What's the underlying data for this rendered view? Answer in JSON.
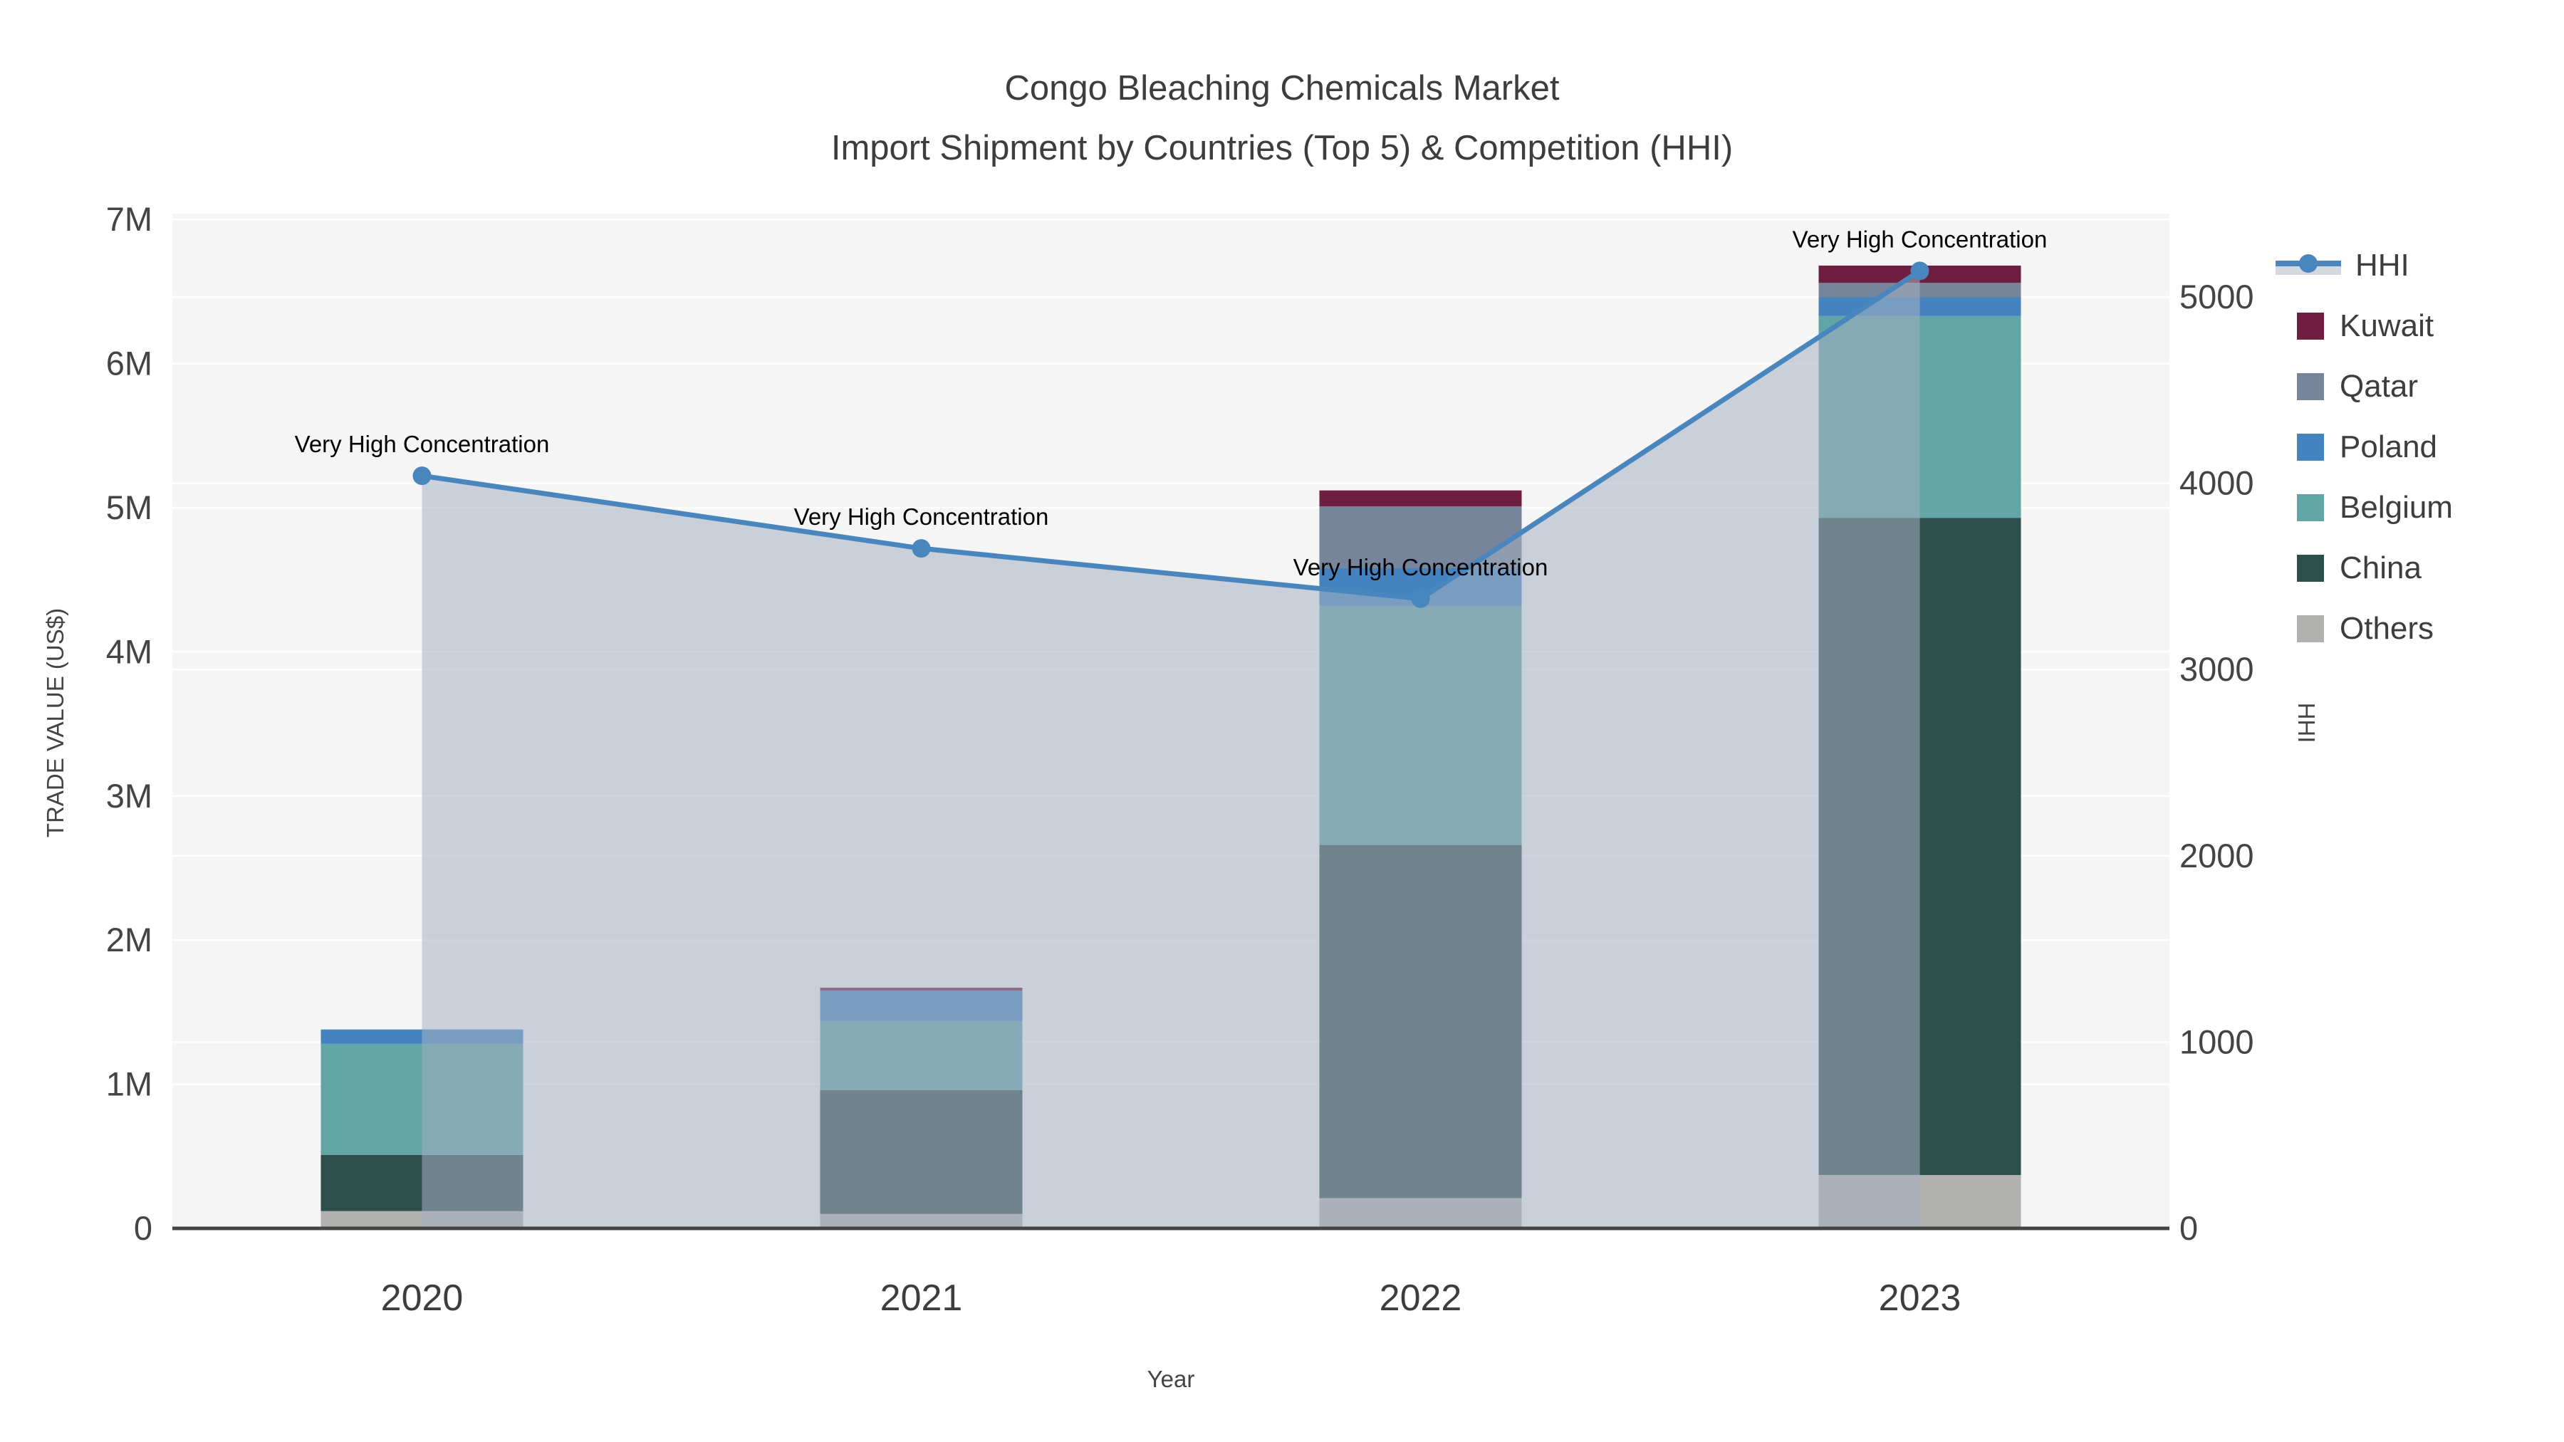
{
  "title": {
    "line1": "Congo Bleaching Chemicals Market",
    "line2": "Import Shipment by Countries (Top 5) & Competition (HHI)"
  },
  "chart_data": {
    "type": "bar",
    "subtype": "stacked-bars-with-dual-axis-line",
    "categories": [
      "2020",
      "2021",
      "2022",
      "2023"
    ],
    "bar_unit": "US$ millions (read from left axis, estimated)",
    "bar_series": [
      {
        "name": "Others",
        "color": "#b1b1af",
        "values_musd": [
          0.12,
          0.1,
          0.21,
          0.37
        ]
      },
      {
        "name": "China",
        "color": "#2d4f4c",
        "values_musd": [
          0.39,
          0.86,
          2.45,
          4.56
        ]
      },
      {
        "name": "Belgium",
        "color": "#62a5a6",
        "values_musd": [
          0.77,
          0.48,
          1.66,
          1.4
        ]
      },
      {
        "name": "Poland",
        "color": "#4483bf",
        "values_musd": [
          0.1,
          0.21,
          0.26,
          0.13
        ]
      },
      {
        "name": "Qatar",
        "color": "#76859b",
        "values_musd": [
          0.0,
          0.0,
          0.43,
          0.1
        ]
      },
      {
        "name": "Kuwait",
        "color": "#6e1e3f",
        "values_musd": [
          0.0,
          0.02,
          0.11,
          0.12
        ]
      }
    ],
    "line_series": {
      "name": "HHI",
      "color": "#4a86be",
      "area_fill": "rgba(166,177,194,0.55)",
      "values": [
        4040,
        3650,
        3380,
        5140
      ]
    },
    "annotations": [
      {
        "category": "2020",
        "text": "Very High Concentration"
      },
      {
        "category": "2021",
        "text": "Very High Concentration"
      },
      {
        "category": "2022",
        "text": "Very High Concentration"
      },
      {
        "category": "2023",
        "text": "Very High Concentration"
      }
    ],
    "left_axis": {
      "title": "TRADE VALUE (US$)",
      "ticks": [
        "0",
        "1M",
        "2M",
        "3M",
        "4M",
        "5M",
        "6M",
        "7M"
      ]
    },
    "right_axis": {
      "title": "HHI",
      "ticks": [
        "0",
        "1000",
        "2000",
        "3000",
        "4000",
        "5000"
      ]
    },
    "x_axis": {
      "title": "Year"
    },
    "layout_hints": {
      "plot_background": "#f5f5f5",
      "gridline_color": "#ffffff",
      "axis_line_color": "#444444",
      "legend_position": "right",
      "legend_order": [
        "HHI",
        "Kuwait",
        "Qatar",
        "Poland",
        "Belgium",
        "China",
        "Others"
      ]
    }
  },
  "legend": {
    "items": [
      {
        "label": "HHI",
        "color": "#4a86be",
        "kind": "line"
      },
      {
        "label": "Kuwait",
        "color": "#6e1e3f",
        "kind": "square"
      },
      {
        "label": "Qatar",
        "color": "#76859b",
        "kind": "square"
      },
      {
        "label": "Poland",
        "color": "#4483bf",
        "kind": "square"
      },
      {
        "label": "Belgium",
        "color": "#62a5a6",
        "kind": "square"
      },
      {
        "label": "China",
        "color": "#2d4f4c",
        "kind": "square"
      },
      {
        "label": "Others",
        "color": "#b1b1af",
        "kind": "square"
      }
    ]
  }
}
